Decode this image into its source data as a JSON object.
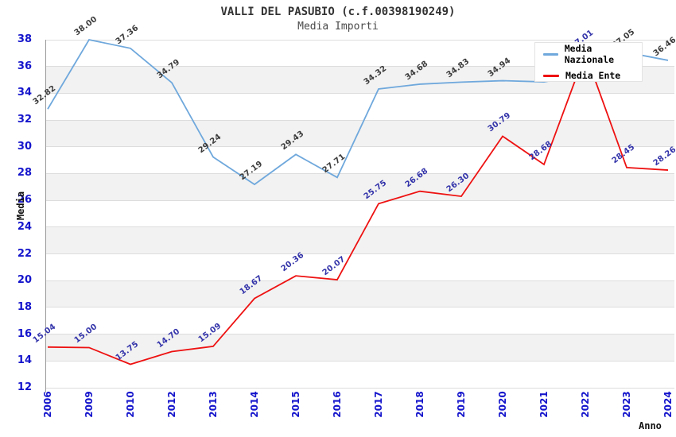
{
  "chart_data": {
    "type": "line",
    "title": "VALLI DEL PASUBIO (c.f.00398190249)",
    "subtitle": "Media Importi",
    "xlabel": "Anno",
    "ylabel": "Media",
    "x_categories": [
      "2006",
      "2009",
      "2010",
      "2012",
      "2013",
      "2014",
      "2015",
      "2016",
      "2017",
      "2018",
      "2019",
      "2020",
      "2021",
      "2022",
      "2023",
      "2024"
    ],
    "ylim": [
      12,
      38
    ],
    "ytick_step": 2,
    "gray_band_lower_edges": [
      14,
      18,
      22,
      26,
      30,
      34
    ],
    "grid": "horizontal gridlines every 2 units, alternating light-gray bands",
    "legend_position": "top-right overlay box",
    "series": [
      {
        "name": "Media Nazionale",
        "color": "#6fa8dc",
        "label_color": "#3c3c3c",
        "values": [
          32.82,
          38.0,
          37.36,
          34.79,
          29.24,
          27.19,
          29.43,
          27.71,
          34.32,
          34.68,
          34.83,
          34.94,
          34.85,
          35.4,
          37.05,
          36.46
        ],
        "labels": [
          "32.82",
          "38.00",
          "37.36",
          "34.79",
          "29.24",
          "27.19",
          "29.43",
          "27.71",
          "34.32",
          "34.68",
          "34.83",
          "34.94",
          null,
          null,
          "37.05",
          "36.46"
        ],
        "note": "2021 and 2022 labels hidden behind legend box in screenshot; those two values estimated from line position"
      },
      {
        "name": "Media Ente",
        "color": "#ee1111",
        "label_color": "#3333aa",
        "values": [
          15.04,
          15.0,
          13.75,
          14.7,
          15.09,
          18.67,
          20.36,
          20.07,
          25.75,
          26.68,
          26.3,
          30.79,
          28.68,
          37.01,
          28.45,
          28.26
        ],
        "labels": [
          "15.04",
          "15.00",
          "13.75",
          "14.70",
          "15.09",
          "18.67",
          "20.36",
          "20.07",
          "25.75",
          "26.68",
          "26.30",
          "30.79",
          "28.68",
          "37.01",
          "28.45",
          "28.26"
        ]
      }
    ],
    "colors": {
      "tick_label": "#1414cc",
      "gridline": "#dddddd",
      "band": "#f2f2f2",
      "axis_line": "#9a9a9a",
      "title": "#333333"
    }
  }
}
